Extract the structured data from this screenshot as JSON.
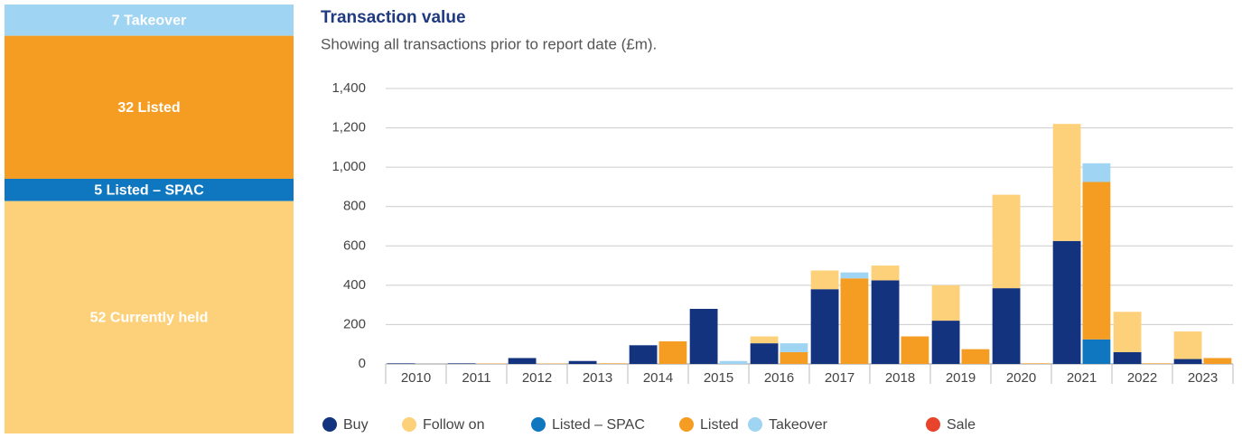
{
  "summary": {
    "blocks": [
      {
        "value": 7,
        "label": "7 Takeover",
        "color": "#9fd4f2"
      },
      {
        "value": 32,
        "label": "32 Listed",
        "color": "#f59d22"
      },
      {
        "value": 5,
        "label": "5 Listed – SPAC",
        "color": "#0f77c0"
      },
      {
        "value": 52,
        "label": "52 Currently held",
        "color": "#fdd17a"
      }
    ]
  },
  "chart_data": {
    "type": "bar",
    "title": "Transaction value",
    "subtitle": "Showing all transactions prior to report date (£m).",
    "categories": [
      "2010",
      "2011",
      "2012",
      "2013",
      "2014",
      "2015",
      "2016",
      "2017",
      "2018",
      "2019",
      "2020",
      "2021",
      "2022",
      "2023"
    ],
    "series": [
      {
        "name": "Buy",
        "color": "#14337f",
        "stack": 0,
        "values": [
          3,
          3,
          30,
          15,
          95,
          280,
          105,
          380,
          425,
          220,
          385,
          625,
          60,
          25
        ]
      },
      {
        "name": "Follow on",
        "color": "#fdd17a",
        "stack": 0,
        "values": [
          0,
          0,
          0,
          0,
          0,
          0,
          35,
          95,
          75,
          180,
          475,
          595,
          205,
          140
        ]
      },
      {
        "name": "Listed – SPAC",
        "color": "#0f77c0",
        "stack": 1,
        "values": [
          0,
          0,
          0,
          0,
          0,
          0,
          0,
          0,
          0,
          0,
          0,
          125,
          0,
          0
        ]
      },
      {
        "name": "Listed",
        "color": "#f59d22",
        "stack": 1,
        "values": [
          0,
          2,
          2,
          3,
          115,
          0,
          60,
          435,
          140,
          75,
          3,
          800,
          3,
          30
        ]
      },
      {
        "name": "Takeover",
        "color": "#9fd4f2",
        "stack": 1,
        "values": [
          0,
          0,
          0,
          0,
          0,
          15,
          45,
          30,
          0,
          0,
          0,
          95,
          0,
          0
        ]
      },
      {
        "name": "Sale",
        "color": "#e8442b",
        "stack": 1,
        "values": [
          0,
          0,
          0,
          0,
          0,
          0,
          0,
          0,
          0,
          0,
          0,
          0,
          0,
          0
        ]
      }
    ],
    "ylim": [
      0,
      1400
    ],
    "yticks": [
      0,
      200,
      400,
      600,
      800,
      {
        "value": 1000,
        "label": "1,000"
      },
      {
        "value": 1200,
        "label": "1,200"
      },
      {
        "value": 1400,
        "label": "1,400"
      }
    ],
    "grid": true
  }
}
